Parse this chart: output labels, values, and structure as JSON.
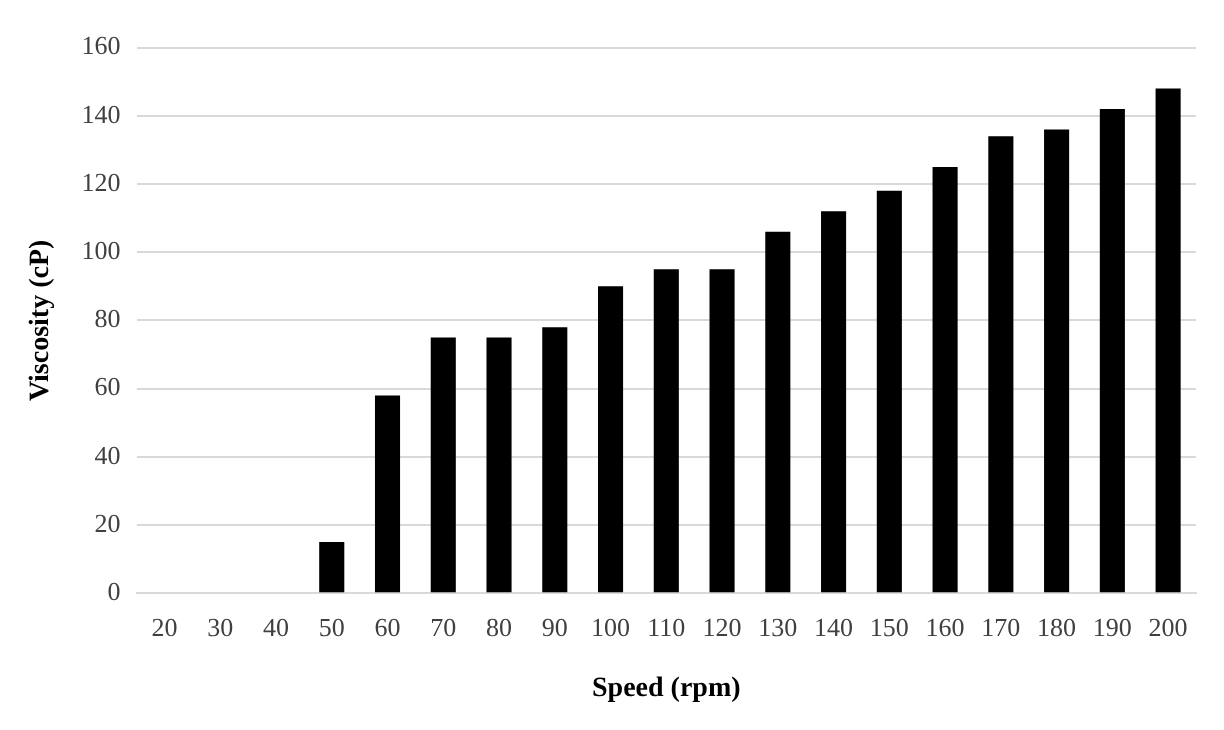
{
  "chart_data": {
    "type": "bar",
    "xlabel": "Speed (rpm)",
    "ylabel": "Viscosity (cP)",
    "categories": [
      "20",
      "30",
      "40",
      "50",
      "60",
      "70",
      "80",
      "90",
      "100",
      "110",
      "120",
      "130",
      "140",
      "150",
      "160",
      "170",
      "180",
      "190",
      "200"
    ],
    "values": [
      0,
      0,
      0,
      15,
      58,
      75,
      75,
      78,
      90,
      95,
      95,
      106,
      112,
      118,
      125,
      134,
      136,
      142,
      148
    ],
    "color": "#000000",
    "ylim": [
      0,
      160
    ],
    "yticks": [
      0,
      20,
      40,
      60,
      80,
      100,
      120,
      140,
      160
    ],
    "grid": "y",
    "legend": false
  }
}
